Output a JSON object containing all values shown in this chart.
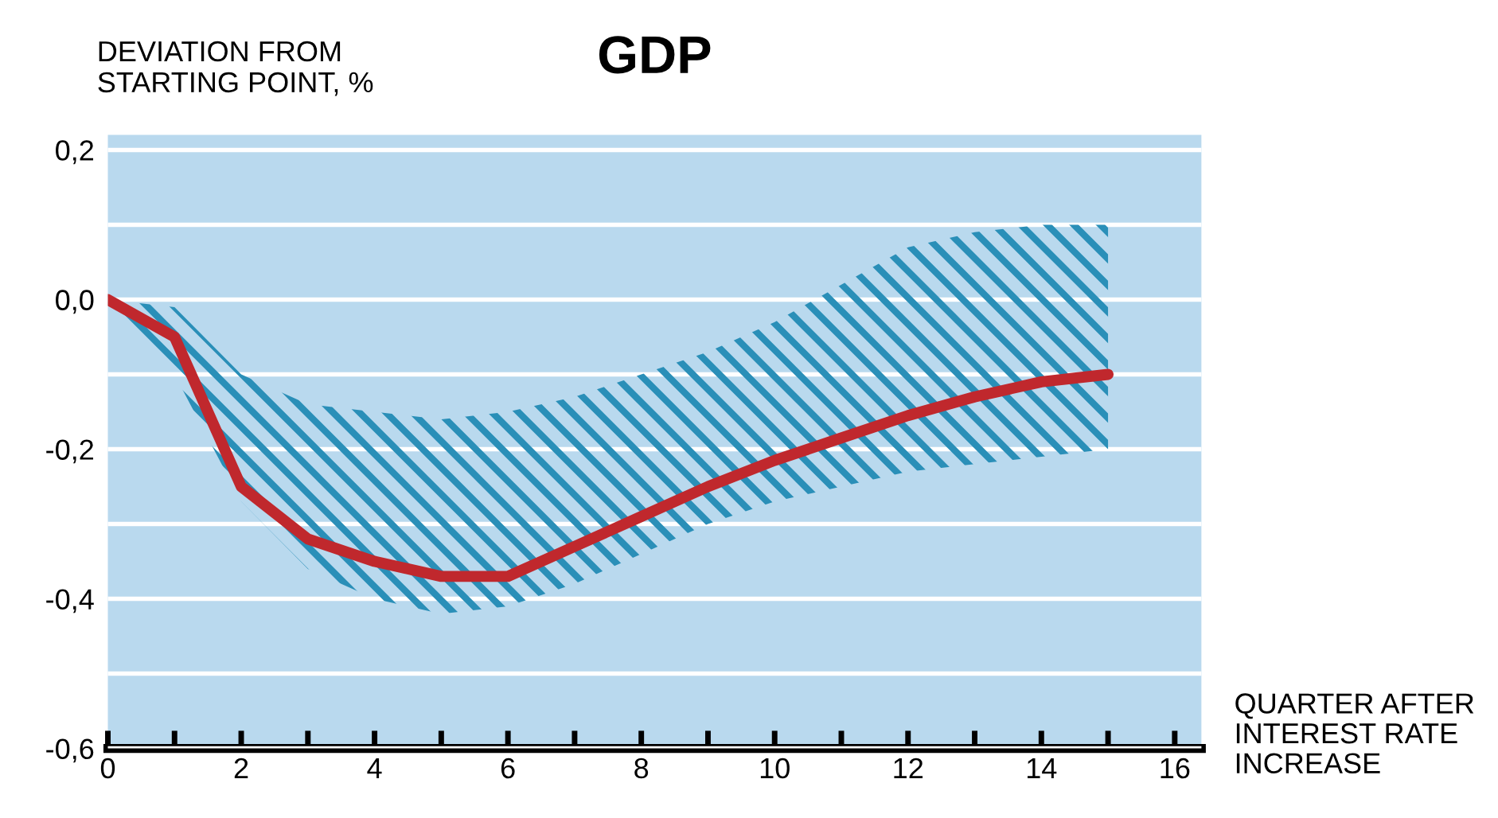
{
  "chart_data": {
    "type": "line",
    "title": "GDP",
    "ylabel": "DEVIATION FROM\nSTARTING POINT, %",
    "xlabel": "QUARTER AFTER\nINTEREST RATE\nINCREASE",
    "x": [
      0,
      1,
      2,
      3,
      4,
      5,
      6,
      7,
      8,
      9,
      10,
      11,
      12,
      13,
      14,
      15
    ],
    "series": [
      {
        "color": "#c0282d",
        "values": [
          0.0,
          -0.05,
          -0.25,
          -0.32,
          -0.35,
          -0.37,
          -0.37,
          -0.33,
          -0.29,
          -0.25,
          -0.215,
          -0.185,
          -0.155,
          -0.13,
          -0.11,
          -0.1
        ],
        "upper": [
          0.0,
          -0.01,
          -0.1,
          -0.14,
          -0.15,
          -0.16,
          -0.15,
          -0.13,
          -0.1,
          -0.07,
          -0.03,
          0.02,
          0.07,
          0.09,
          0.1,
          0.1
        ],
        "lower": [
          -0.02,
          -0.1,
          -0.27,
          -0.36,
          -0.4,
          -0.42,
          -0.41,
          -0.38,
          -0.34,
          -0.3,
          -0.27,
          -0.25,
          -0.23,
          -0.22,
          -0.21,
          -0.2
        ]
      }
    ],
    "xlim": [
      0,
      16.4
    ],
    "ylim": [
      -0.6,
      0.22
    ],
    "xticks": [
      0,
      {
        "value": 1,
        "label": null
      },
      2,
      {
        "value": 3,
        "label": null
      },
      4,
      {
        "value": 5,
        "label": null
      },
      6,
      {
        "value": 7,
        "label": null
      },
      8,
      {
        "value": 9,
        "label": null
      },
      10,
      {
        "value": 11,
        "label": null
      },
      12,
      {
        "value": 13,
        "label": null
      },
      14,
      {
        "value": 15,
        "label": null
      },
      16
    ],
    "yticks": [
      {
        "value": -0.6,
        "label": "-0,6"
      },
      {
        "value": -0.5,
        "label": null
      },
      {
        "value": -0.4,
        "label": "-0,4"
      },
      {
        "value": -0.3,
        "label": null
      },
      {
        "value": -0.2,
        "label": "-0,2"
      },
      {
        "value": -0.1,
        "label": null
      },
      {
        "value": 0.0,
        "label": "0,0"
      },
      {
        "value": 0.1,
        "label": null
      },
      {
        "value": 0.2,
        "label": "0,2"
      }
    ],
    "grid": "y",
    "legend": false,
    "marker": "none",
    "line_style": "solid"
  }
}
